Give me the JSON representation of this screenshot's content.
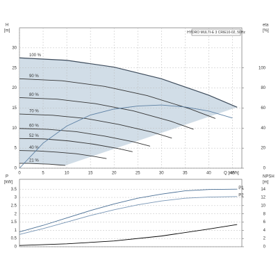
{
  "chart_data": [
    {
      "type": "line",
      "title": "HYDRO MULTI-E 3 CRIE10-02, 50Hz",
      "x_label": "Q [m³/h]",
      "y_label": "H",
      "y_unit": "[m]",
      "y2_label": "eta",
      "y2_unit": "[%]",
      "xlim": [
        0,
        47
      ],
      "ylim": [
        0,
        35
      ],
      "y2lim": [
        0,
        140
      ],
      "xticks": [
        0,
        5,
        10,
        15,
        20,
        25,
        30,
        35,
        40,
        45
      ],
      "yticks": [
        0,
        5,
        10,
        15,
        20,
        25,
        30
      ],
      "y2ticks": [
        0,
        20,
        40,
        60,
        80,
        100
      ],
      "grid": true,
      "range_color": "#c9d7e3",
      "series": [
        {
          "name": "100 %",
          "color": "#3c4a5a",
          "x": [
            0,
            10,
            20,
            30,
            40,
            46
          ],
          "values": [
            27.5,
            26.9,
            25.2,
            22.3,
            18.2,
            15.2
          ]
        },
        {
          "name": "90 %",
          "color": "#333333",
          "x": [
            0,
            9,
            18,
            27,
            36,
            41.4
          ],
          "values": [
            22.3,
            21.8,
            20.4,
            18.1,
            14.8,
            12.4
          ]
        },
        {
          "name": "80 %",
          "color": "#333333",
          "x": [
            0,
            8,
            16,
            24,
            32,
            36.8
          ],
          "values": [
            17.6,
            17.2,
            16.1,
            14.3,
            11.7,
            9.7
          ]
        },
        {
          "name": "70 %",
          "color": "#333333",
          "x": [
            0,
            7,
            14,
            21,
            28,
            32.2
          ],
          "values": [
            13.5,
            13.2,
            12.4,
            10.9,
            9.0,
            7.5
          ]
        },
        {
          "name": "60 %",
          "color": "#333333",
          "x": [
            0,
            6,
            12,
            18,
            24,
            27.6
          ],
          "values": [
            9.9,
            9.7,
            9.1,
            8.0,
            6.6,
            5.5
          ]
        },
        {
          "name": "52 %",
          "color": "#333333",
          "x": [
            0,
            5.2,
            10.4,
            15.6,
            20.8,
            23.9
          ],
          "values": [
            7.4,
            7.3,
            6.8,
            6.0,
            4.9,
            4.1
          ]
        },
        {
          "name": "40 %",
          "color": "#333333",
          "x": [
            0,
            4,
            8,
            12,
            16,
            18.4
          ],
          "values": [
            4.4,
            4.3,
            4.0,
            3.6,
            2.9,
            2.4
          ]
        },
        {
          "name": "21 %",
          "color": "#333333",
          "x": [
            0,
            2.1,
            4.2,
            6.3,
            8.4,
            9.7
          ],
          "values": [
            1.2,
            1.2,
            1.1,
            1.0,
            0.8,
            0.7
          ]
        },
        {
          "color": "#5b7fa3",
          "axis": "y2",
          "x": [
            0,
            5,
            10,
            15,
            20,
            25,
            30,
            35,
            40,
            45
          ],
          "values": [
            0,
            25,
            42,
            53,
            59,
            62,
            63,
            61,
            57,
            50
          ]
        }
      ]
    },
    {
      "type": "line",
      "y_label": "P",
      "y_unit": "[kW]",
      "y2_label": "NPSH",
      "y2_unit": "[m]",
      "xlim": [
        0,
        47
      ],
      "ylim": [
        0,
        4.1
      ],
      "y2lim": [
        0,
        16.4
      ],
      "yticks": [
        0.0,
        0.5,
        1.0,
        1.5,
        2.0,
        2.5,
        3.0,
        3.5
      ],
      "y2ticks": [
        0,
        2,
        4,
        6,
        8,
        10,
        12,
        14
      ],
      "grid": true,
      "series": [
        {
          "name": "P1",
          "color": "#4a6f95",
          "x": [
            0,
            5,
            10,
            15,
            20,
            25,
            30,
            35,
            40,
            46
          ],
          "values": [
            0.9,
            1.3,
            1.75,
            2.2,
            2.6,
            2.95,
            3.2,
            3.4,
            3.48,
            3.5
          ]
        },
        {
          "name": "P2",
          "color": "#7795b5",
          "x": [
            0,
            5,
            10,
            15,
            20,
            25,
            30,
            35,
            40,
            46
          ],
          "values": [
            0.75,
            1.1,
            1.5,
            1.9,
            2.25,
            2.55,
            2.78,
            2.95,
            3.02,
            3.05
          ]
        },
        {
          "color": "#000000",
          "axis": "y2",
          "x": [
            0,
            10,
            20,
            30,
            40,
            46
          ],
          "values": [
            0.3,
            0.7,
            1.4,
            2.6,
            4.3,
            5.4
          ]
        }
      ]
    }
  ]
}
